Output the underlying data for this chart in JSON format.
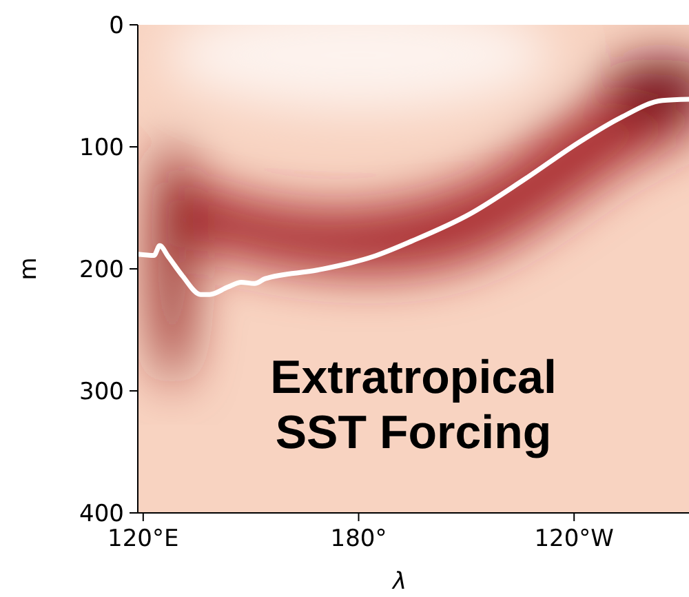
{
  "chart_data": {
    "type": "line",
    "xlabel": "λ",
    "ylabel": "m",
    "xlim": [
      118.5,
      272
    ],
    "xticks": [
      {
        "value": 120,
        "label": "120°E"
      },
      {
        "value": 180,
        "label": "180°"
      },
      {
        "value": 240,
        "label": "120°W"
      }
    ],
    "ylim": [
      400,
      0
    ],
    "yticks": [
      0,
      100,
      200,
      300,
      400
    ],
    "annotations": [
      "Extratropical SST Forcing"
    ],
    "series": [
      {
        "color": "#ffffff",
        "x": [
          118.5,
          123,
          124.6,
          127,
          131,
          136,
          138.5,
          143.5,
          147.3,
          151,
          154,
          168.5,
          184,
          195,
          211,
          226,
          241.5,
          253,
          264.6,
          272
        ],
        "values": [
          188,
          189,
          181,
          190,
          206,
          221,
          221,
          215,
          211,
          212,
          208,
          201,
          190,
          177,
          155,
          127,
          96,
          76,
          62,
          61
        ]
      }
    ],
    "grid": false,
    "marker": "none",
    "line_style": "solid"
  }
}
